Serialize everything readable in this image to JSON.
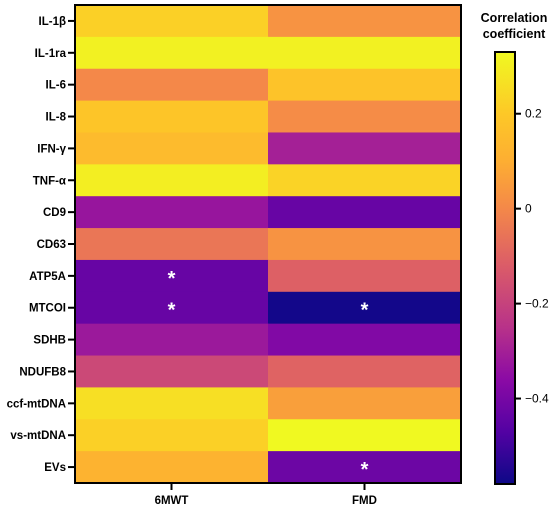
{
  "chart_data": {
    "type": "heatmap",
    "rows": [
      "IL-1β",
      "IL-1ra",
      "IL-6",
      "IL-8",
      "IFN-γ",
      "TNF-α",
      "CD9",
      "CD63",
      "ATP5A",
      "MTCOI",
      "SDHB",
      "NDUFB8",
      "ccf-mtDNA",
      "vs-mtDNA",
      "EVs"
    ],
    "columns": [
      "6MWT",
      "FMD"
    ],
    "values": [
      [
        0.22,
        0.03
      ],
      [
        0.31,
        0.31
      ],
      [
        0.0,
        0.18
      ],
      [
        0.19,
        0.01
      ],
      [
        0.15,
        -0.3
      ],
      [
        0.3,
        0.23
      ],
      [
        -0.33,
        -0.43
      ],
      [
        -0.05,
        0.03
      ],
      [
        -0.43,
        -0.11
      ],
      [
        -0.43,
        -0.57
      ],
      [
        -0.32,
        -0.38
      ],
      [
        -0.18,
        -0.1
      ],
      [
        0.26,
        0.06
      ],
      [
        0.22,
        0.33
      ],
      [
        0.12,
        -0.42
      ]
    ],
    "significant": [
      {
        "row": "ATP5A",
        "column": "6MWT"
      },
      {
        "row": "MTCOI",
        "column": "6MWT"
      },
      {
        "row": "MTCOI",
        "column": "FMD"
      },
      {
        "row": "EVs",
        "column": "FMD"
      }
    ],
    "significance_marker": "*",
    "colorbar": {
      "title_lines": [
        "Correlation",
        "coefficient"
      ],
      "range": [
        -0.58,
        0.33
      ],
      "ticks": [
        0.2,
        0,
        -0.2,
        -0.4
      ],
      "tick_labels": [
        "0.2",
        "0",
        "−0.2",
        "−0.4"
      ],
      "colormap": "plasma"
    },
    "colormap_stops": [
      {
        "v": -0.58,
        "color": "#0d0887"
      },
      {
        "v": -0.47,
        "color": "#5302a3"
      },
      {
        "v": -0.36,
        "color": "#8b0aa5"
      },
      {
        "v": -0.25,
        "color": "#b83289"
      },
      {
        "v": -0.12,
        "color": "#db5c68"
      },
      {
        "v": 0.0,
        "color": "#f48849"
      },
      {
        "v": 0.1,
        "color": "#fdae32"
      },
      {
        "v": 0.2,
        "color": "#fdc827"
      },
      {
        "v": 0.33,
        "color": "#f0f921"
      }
    ]
  }
}
